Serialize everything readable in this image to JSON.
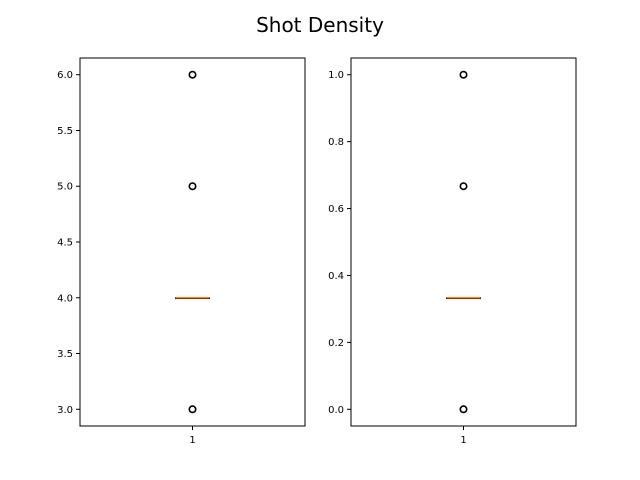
{
  "figure": {
    "title": "Shot Density"
  },
  "chart_data": [
    {
      "type": "box",
      "categories": [
        "1"
      ],
      "ylim": [
        2.85,
        6.15
      ],
      "yticks": [
        3.0,
        3.5,
        4.0,
        4.5,
        5.0,
        5.5,
        6.0
      ],
      "ytick_labels": [
        "3.0",
        "3.5",
        "4.0",
        "4.5",
        "5.0",
        "5.5",
        "6.0"
      ],
      "box": {
        "q1": 4.0,
        "median": 4.0,
        "q3": 4.0,
        "whisker_low": 4.0,
        "whisker_high": 4.0
      },
      "outliers": [
        3.0,
        5.0,
        6.0
      ],
      "grid": false,
      "median_color": "#ff7f0e"
    },
    {
      "type": "box",
      "categories": [
        "1"
      ],
      "ylim": [
        -0.05,
        1.05
      ],
      "yticks": [
        0.0,
        0.2,
        0.4,
        0.6,
        0.8,
        1.0
      ],
      "ytick_labels": [
        "0.0",
        "0.2",
        "0.4",
        "0.6",
        "0.8",
        "1.0"
      ],
      "box": {
        "q1": 0.3333,
        "median": 0.3333,
        "q3": 0.3333,
        "whisker_low": 0.3333,
        "whisker_high": 0.3333
      },
      "outliers": [
        0.0,
        0.6667,
        1.0
      ],
      "grid": false,
      "median_color": "#ff7f0e"
    }
  ]
}
